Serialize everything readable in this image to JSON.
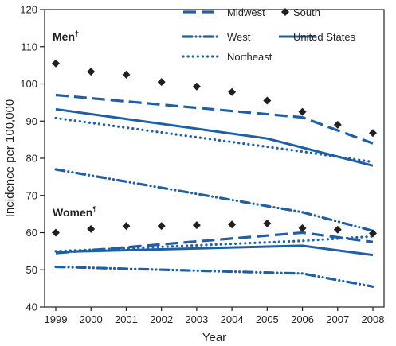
{
  "chart_data": {
    "type": "line",
    "xlabel": "Year",
    "ylabel": "Incidence per 100,000",
    "ylim": [
      40,
      120
    ],
    "yticks": [
      40,
      50,
      60,
      70,
      80,
      90,
      100,
      110,
      120
    ],
    "categories": [
      "1999",
      "2000",
      "2001",
      "2002",
      "2003",
      "2004",
      "2005",
      "2006",
      "2007",
      "2008"
    ],
    "grid": false,
    "legend_position": "top-right",
    "group_labels": [
      {
        "text": "Men",
        "mark": "†"
      },
      {
        "text": "Women",
        "mark": "¶"
      }
    ],
    "series": [
      {
        "name": "Midwest",
        "group": "Men",
        "style": "dashed",
        "color": "#1f5fa5",
        "x": [
          1999,
          2006,
          2008
        ],
        "values": [
          97,
          91,
          84
        ]
      },
      {
        "name": "West",
        "group": "Men",
        "style": "dashdot",
        "color": "#1f5fa5",
        "x": [
          1999,
          2006,
          2008
        ],
        "values": [
          77,
          65.5,
          60.5
        ]
      },
      {
        "name": "Northeast",
        "group": "Men",
        "style": "dotted",
        "color": "#1f5fa5",
        "x": [
          1999,
          2006,
          2008
        ],
        "values": [
          90.8,
          81.8,
          79
        ]
      },
      {
        "name": "United States",
        "group": "Men",
        "style": "solid",
        "color": "#1f5fa5",
        "x": [
          1999,
          2005,
          2008
        ],
        "values": [
          93.2,
          85.3,
          78
        ]
      },
      {
        "name": "South",
        "group": "Men",
        "style": "marker",
        "color": "#231f20",
        "x": [
          1999,
          2000,
          2001,
          2002,
          2003,
          2004,
          2005,
          2006,
          2007,
          2008
        ],
        "values": [
          105.5,
          103.3,
          102.5,
          100.5,
          99.3,
          97.8,
          95.5,
          92.5,
          89,
          86.8
        ]
      },
      {
        "name": "Midwest",
        "group": "Women",
        "style": "dashed",
        "color": "#1f5fa5",
        "x": [
          1999,
          2006,
          2008
        ],
        "values": [
          54.5,
          60,
          57.5
        ]
      },
      {
        "name": "West",
        "group": "Women",
        "style": "dashdot",
        "color": "#1f5fa5",
        "x": [
          1999,
          2006,
          2008
        ],
        "values": [
          50.8,
          49,
          45.5
        ]
      },
      {
        "name": "Northeast",
        "group": "Women",
        "style": "dotted",
        "color": "#1f5fa5",
        "x": [
          1999,
          2006,
          2008
        ],
        "values": [
          55,
          57.8,
          59
        ]
      },
      {
        "name": "United States",
        "group": "Women",
        "style": "solid",
        "color": "#1f5fa5",
        "x": [
          1999,
          2006,
          2008
        ],
        "values": [
          54.8,
          56.5,
          54
        ]
      },
      {
        "name": "South",
        "group": "Women",
        "style": "marker",
        "color": "#231f20",
        "x": [
          1999,
          2000,
          2001,
          2002,
          2003,
          2004,
          2005,
          2006,
          2007,
          2008
        ],
        "values": [
          60,
          61,
          61.8,
          61.8,
          62,
          62.2,
          62.5,
          61.2,
          60.8,
          59.8
        ]
      }
    ],
    "legend": [
      {
        "label": "Midwest",
        "style": "dashed"
      },
      {
        "label": "South",
        "style": "marker"
      },
      {
        "label": "West",
        "style": "dashdot"
      },
      {
        "label": "United States",
        "style": "solid"
      },
      {
        "label": "Northeast",
        "style": "dotted"
      }
    ]
  }
}
